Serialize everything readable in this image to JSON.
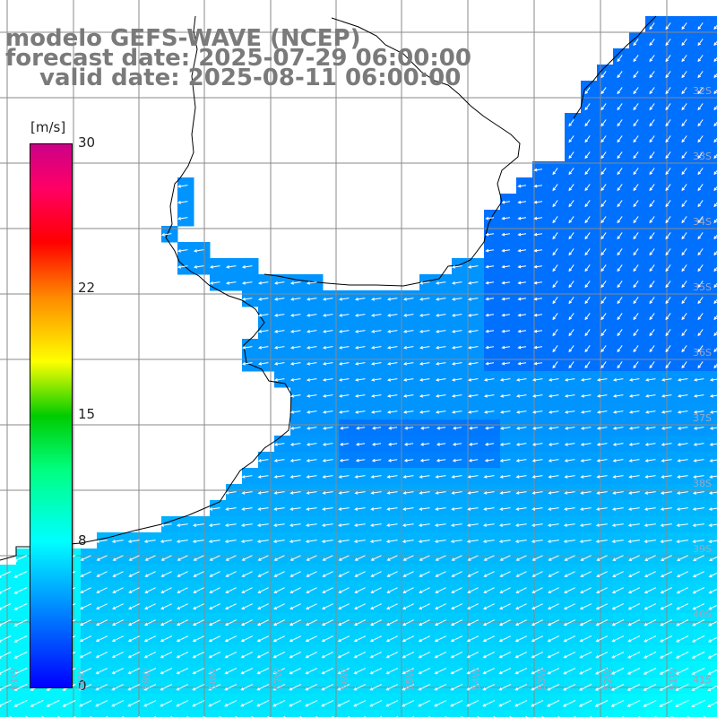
{
  "title": {
    "line1": "modelo GEFS-WAVE (NCEP)",
    "line2": "forecast date: 2025-07-29 06:00:00",
    "line3": "valid date: 2025-08-11 06:00:00"
  },
  "colorbar": {
    "unit": "[m/s]",
    "ticks": [
      {
        "label": "30",
        "value": 30
      },
      {
        "label": "22",
        "value": 22
      },
      {
        "label": "15",
        "value": 15
      },
      {
        "label": "8",
        "value": 8
      },
      {
        "label": "0",
        "value": 0
      }
    ],
    "min": 0,
    "max": 30
  },
  "lat_labels": [
    "32S",
    "33S",
    "34S",
    "35S",
    "36S",
    "37S",
    "38S",
    "39S",
    "40S",
    "41S"
  ],
  "lon_labels": [
    "61W",
    "60W",
    "59W",
    "58W",
    "57W",
    "56W",
    "55W",
    "54W",
    "53W",
    "52W",
    "51W"
  ],
  "colors": {
    "land": "#ffffff",
    "grid": "#8a8a8a",
    "coast": "#000000",
    "title": "#7a7a7a",
    "arrows": "#ffffff",
    "label": "#9aa6c8"
  }
}
